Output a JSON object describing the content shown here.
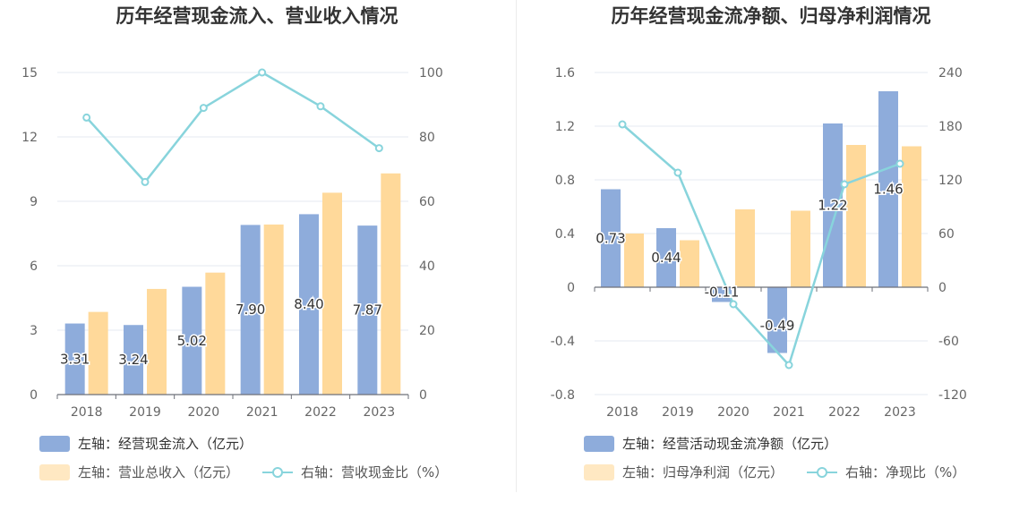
{
  "chart_data": [
    {
      "type": "bar",
      "title": "历年经营现金流入、营业收入情况",
      "categories": [
        "2018",
        "2019",
        "2020",
        "2021",
        "2022",
        "2023"
      ],
      "y_left": {
        "ylim": [
          0,
          15
        ],
        "ticks": [
          "0",
          "3",
          "6",
          "9",
          "12",
          "15"
        ]
      },
      "y_right": {
        "ylim": [
          0,
          100
        ],
        "ticks": [
          "0",
          "20",
          "40",
          "60",
          "80",
          "100"
        ]
      },
      "series": [
        {
          "name": "左轴：经营现金流入（亿元）",
          "kind": "bar",
          "axis": "left",
          "color": "#8eacdb",
          "values": [
            3.31,
            3.24,
            5.02,
            7.9,
            8.4,
            7.87
          ],
          "labels": [
            "3.31",
            "3.24",
            "5.02",
            "7.90",
            "8.40",
            "7.87"
          ]
        },
        {
          "name": "左轴：营业总收入（亿元）",
          "kind": "bar",
          "axis": "left",
          "color": "#ffd99a",
          "values": [
            3.85,
            4.92,
            5.68,
            7.92,
            9.4,
            10.3
          ]
        },
        {
          "name": "右轴：营收现金比（%）",
          "kind": "line",
          "axis": "right",
          "color": "#88d4dc",
          "values": [
            86.0,
            66.0,
            89.0,
            100.0,
            89.5,
            76.5
          ]
        }
      ],
      "grid": true,
      "legend_position": "bottom-left"
    },
    {
      "type": "bar",
      "title": "历年经营现金流净额、归母净利润情况",
      "categories": [
        "2018",
        "2019",
        "2020",
        "2021",
        "2022",
        "2023"
      ],
      "y_left": {
        "ylim": [
          -0.8,
          1.6
        ],
        "ticks": [
          "-0.8",
          "-0.4",
          "0",
          "0.4",
          "0.8",
          "1.2",
          "1.6"
        ]
      },
      "y_right": {
        "ylim": [
          -120,
          240
        ],
        "ticks": [
          "-120",
          "-60",
          "0",
          "60",
          "120",
          "180",
          "240"
        ]
      },
      "series": [
        {
          "name": "左轴：经营活动现金流净额（亿元）",
          "kind": "bar",
          "axis": "left",
          "color": "#8eacdb",
          "values": [
            0.73,
            0.44,
            -0.11,
            -0.49,
            1.22,
            1.46
          ],
          "labels": [
            "0.73",
            "0.44",
            "-0.11",
            "-0.49",
            "1.22",
            "1.46"
          ]
        },
        {
          "name": "左轴：归母净利润（亿元）",
          "kind": "bar",
          "axis": "left",
          "color": "#ffd99a",
          "values": [
            0.4,
            0.35,
            0.58,
            0.57,
            1.06,
            1.05
          ]
        },
        {
          "name": "右轴：净现比（%）",
          "kind": "line",
          "axis": "right",
          "color": "#88d4dc",
          "values": [
            182.0,
            128.0,
            -19.0,
            -87.0,
            115.0,
            138.0
          ]
        }
      ],
      "grid": true,
      "legend_position": "bottom-left"
    }
  ]
}
